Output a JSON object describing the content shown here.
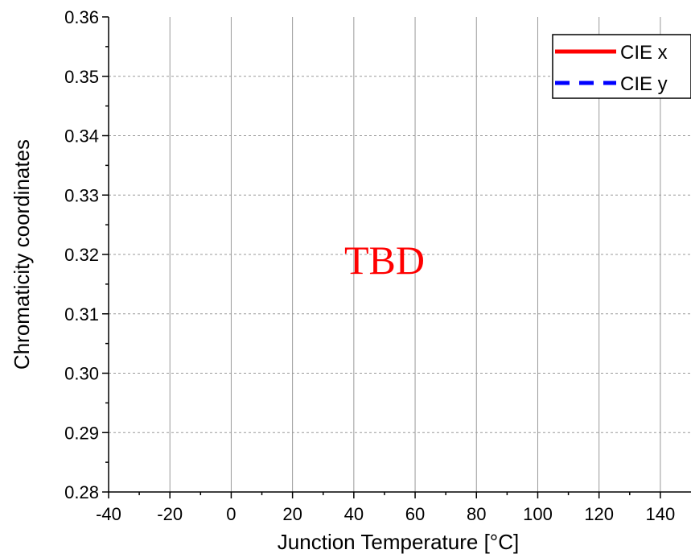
{
  "chart_data": {
    "type": "line",
    "xlabel": "Junction Temperature [°C]",
    "ylabel": "Chromaticity coordinates",
    "xlim": [
      -40,
      150
    ],
    "ylim": [
      0.28,
      0.36
    ],
    "x_ticks": [
      "-40",
      "-20",
      "0",
      "20",
      "40",
      "60",
      "80",
      "100",
      "120",
      "140"
    ],
    "y_ticks": [
      "0.28",
      "0.29",
      "0.30",
      "0.31",
      "0.32",
      "0.33",
      "0.34",
      "0.35",
      "0.36"
    ],
    "vertical_grid": "solid",
    "horizontal_grid": "dashed",
    "legend_position": "top-right",
    "series": [
      {
        "name": "CIE x",
        "color": "#ff0000",
        "line_style": "solid",
        "x": [],
        "y": []
      },
      {
        "name": "CIE y",
        "color": "#0000ff",
        "line_style": "dashed",
        "x": [],
        "y": []
      }
    ],
    "annotation": {
      "text": "TBD",
      "color": "#ff0000",
      "x": 50,
      "y": 0.32
    }
  }
}
